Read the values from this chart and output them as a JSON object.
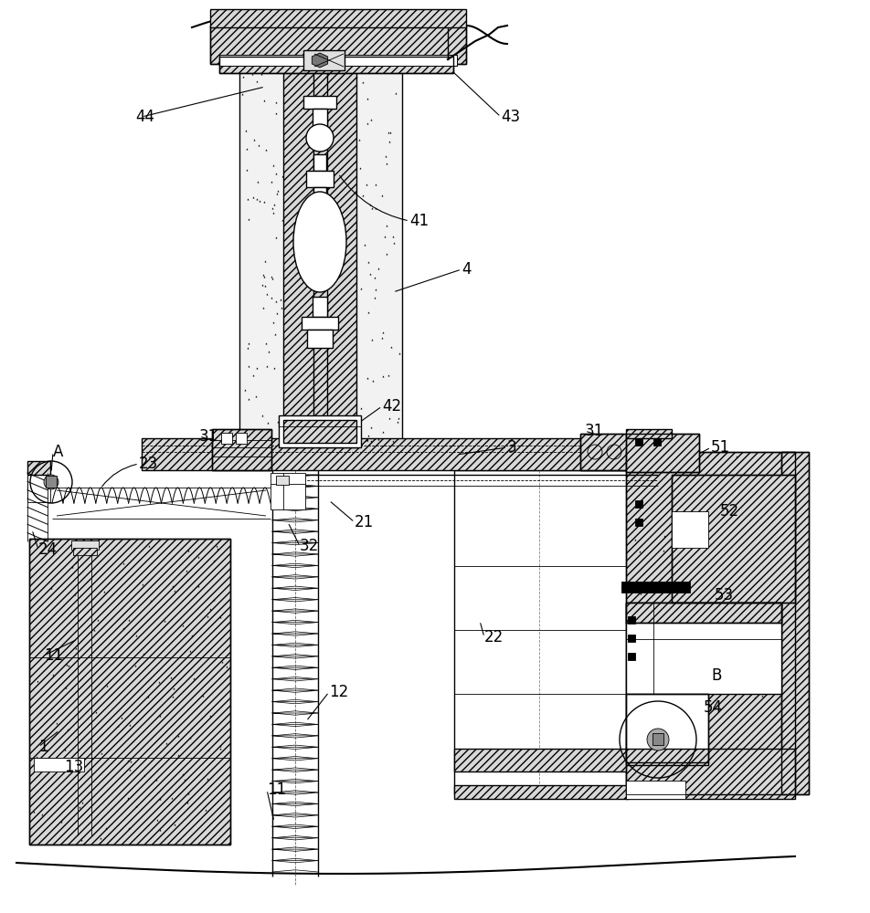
{
  "bg_color": "#ffffff",
  "fig_w": 9.53,
  "fig_h": 10.0,
  "dpi": 100,
  "lw_main": 1.0,
  "lw_thin": 0.6,
  "lw_thick": 1.5,
  "hatch_fc": "#d8d8d8",
  "concrete_fc": "#f2f2f2",
  "white_fc": "#ffffff",
  "gray_fc": "#e0e0e0"
}
